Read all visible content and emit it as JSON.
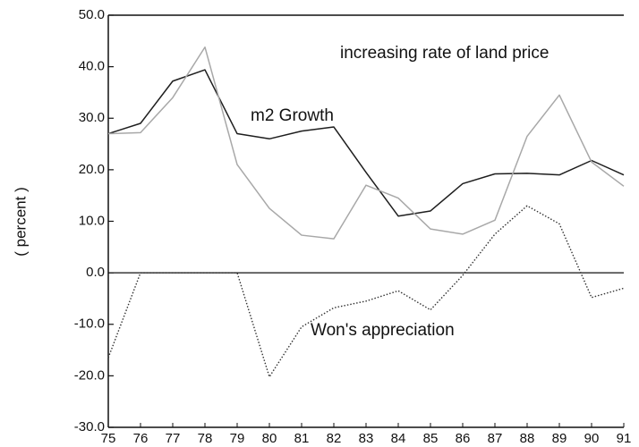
{
  "chart_data": {
    "type": "line",
    "ylabel": "( percent )",
    "categories": [
      "75",
      "76",
      "77",
      "78",
      "79",
      "80",
      "81",
      "82",
      "83",
      "84",
      "85",
      "86",
      "87",
      "88",
      "89",
      "90",
      "91"
    ],
    "series": [
      {
        "name": "m2 Growth",
        "color": "#1e1e1e",
        "style": "solid",
        "values": [
          27,
          29,
          37.2,
          39.4,
          27,
          26,
          27.5,
          28.3,
          19.5,
          11,
          12,
          17.3,
          19.2,
          19.3,
          19,
          21.8,
          19
        ]
      },
      {
        "name": "increasing rate of land price",
        "color": "#a8a8a8",
        "style": "solid",
        "values": [
          27,
          27.2,
          34,
          43.8,
          21,
          12.5,
          7.3,
          6.6,
          17,
          14.5,
          8.5,
          7.5,
          10.2,
          26.5,
          34.5,
          21.5,
          16.8
        ]
      },
      {
        "name": "Won's appreciation",
        "color": "#333333",
        "style": "dotted",
        "values": [
          -16.5,
          0,
          0,
          0,
          0,
          -20.2,
          -10.5,
          -6.8,
          -5.5,
          -3.5,
          -7.2,
          -0.5,
          7.5,
          13,
          9.5,
          -4.8,
          -3
        ]
      }
    ],
    "ylim": [
      -30,
      50
    ],
    "yticks": [
      {
        "value": -30,
        "label": "-30.0"
      },
      {
        "value": -20,
        "label": "-20.0"
      },
      {
        "value": -10,
        "label": "-10.0"
      },
      {
        "value": 0,
        "label": "0.0"
      },
      {
        "value": 10,
        "label": "10.0"
      },
      {
        "value": 20,
        "label": "20.0"
      },
      {
        "value": 30,
        "label": "30.0"
      },
      {
        "value": 40,
        "label": "40.0"
      },
      {
        "value": 50,
        "label": "50.0"
      }
    ]
  }
}
